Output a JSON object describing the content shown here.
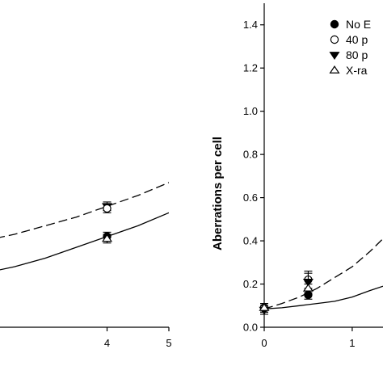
{
  "chart_data": [
    {
      "type": "scatter",
      "panel": "left",
      "xlim": [
        2,
        5
      ],
      "ylim": [
        0,
        1.5
      ],
      "x_ticks": [
        4,
        5
      ],
      "x_tick_labels": [
        "4",
        "5"
      ],
      "series": [
        {
          "marker": "filled-triangle-down",
          "x": [
            4.0
          ],
          "y": [
            0.56
          ],
          "err": [
            0.02
          ]
        },
        {
          "marker": "open-circle",
          "x": [
            4.0
          ],
          "y": [
            0.55
          ],
          "err": [
            0.02
          ]
        },
        {
          "marker": "filled-circle",
          "x": [
            4.0
          ],
          "y": [
            0.42
          ],
          "err": [
            0.02
          ]
        },
        {
          "marker": "open-triangle-up",
          "x": [
            4.0
          ],
          "y": [
            0.41
          ],
          "err": [
            0.02
          ]
        }
      ],
      "fits": [
        {
          "style": "dashed",
          "x": [
            2.0,
            2.5,
            3.0,
            3.5,
            4.0,
            4.5,
            5.0
          ],
          "y": [
            0.4,
            0.43,
            0.47,
            0.51,
            0.56,
            0.61,
            0.67
          ]
        },
        {
          "style": "solid",
          "x": [
            2.0,
            2.5,
            3.0,
            3.5,
            4.0,
            4.5,
            5.0
          ],
          "y": [
            0.25,
            0.28,
            0.32,
            0.37,
            0.42,
            0.47,
            0.53
          ]
        }
      ]
    },
    {
      "type": "scatter",
      "panel": "right",
      "ylabel": "Aberrations per cell",
      "xlim": [
        0,
        1.35
      ],
      "ylim": [
        0,
        1.5
      ],
      "x_ticks": [
        0,
        1
      ],
      "x_tick_labels": [
        "0",
        "1"
      ],
      "y_ticks": [
        0.0,
        0.2,
        0.4,
        0.6,
        0.8,
        1.0,
        1.2,
        1.4
      ],
      "y_tick_labels": [
        "0.0",
        "0.2",
        "0.4",
        "0.6",
        "0.8",
        "1.0",
        "1.2",
        "1.4"
      ],
      "legend": {
        "placement": "top-right",
        "entries": [
          {
            "marker": "filled-circle",
            "label": "No E"
          },
          {
            "marker": "open-circle",
            "label": "40 p"
          },
          {
            "marker": "filled-triangle-down",
            "label": "80 p"
          },
          {
            "marker": "open-triangle-up",
            "label": "X-ra"
          }
        ]
      },
      "series": [
        {
          "marker": "filled-circle",
          "x": [
            0.0,
            0.5
          ],
          "y": [
            0.09,
            0.15
          ],
          "err": [
            0.02,
            0.02
          ]
        },
        {
          "marker": "open-circle",
          "x": [
            0.0,
            0.5
          ],
          "y": [
            0.09,
            0.22
          ],
          "err": [
            0.02,
            0.04
          ]
        },
        {
          "marker": "filled-triangle-down",
          "x": [
            0.0,
            0.5
          ],
          "y": [
            0.08,
            0.21
          ],
          "err": [
            0.02,
            0.04
          ]
        },
        {
          "marker": "open-triangle-up",
          "x": [
            0.0,
            0.5
          ],
          "y": [
            0.09,
            0.18
          ],
          "err": [
            0.02,
            0.02
          ]
        }
      ],
      "fits": [
        {
          "style": "dashed",
          "x": [
            0.0,
            0.2,
            0.4,
            0.6,
            0.8,
            1.0,
            1.2,
            1.35
          ],
          "y": [
            0.085,
            0.11,
            0.14,
            0.18,
            0.23,
            0.28,
            0.35,
            0.41
          ]
        },
        {
          "style": "solid",
          "x": [
            0.0,
            0.2,
            0.4,
            0.6,
            0.8,
            1.0,
            1.2,
            1.35
          ],
          "y": [
            0.085,
            0.09,
            0.1,
            0.11,
            0.12,
            0.14,
            0.17,
            0.19
          ]
        }
      ]
    }
  ]
}
